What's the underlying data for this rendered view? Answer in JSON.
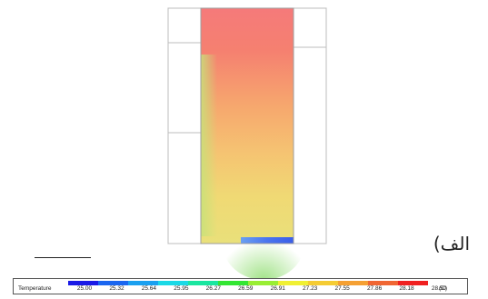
{
  "caption": "الف)",
  "legend": {
    "title": "Temperature",
    "unit": "(C)",
    "ticks": [
      "25.00",
      "25.32",
      "25.64",
      "25.95",
      "26.27",
      "26.59",
      "26.91",
      "27.23",
      "27.55",
      "27.86",
      "28.18",
      "28.50"
    ],
    "colors": [
      "#1a1ae6",
      "#1a66f0",
      "#1aa0f0",
      "#1ad9e6",
      "#1ae6a0",
      "#33e633",
      "#99ee33",
      "#f0f033",
      "#f5cc33",
      "#f5a033",
      "#f06633",
      "#f02020"
    ]
  },
  "contour": {
    "hot_color": "#f57a7a",
    "mid_color": "#f7bf6f",
    "warm_color": "#f1dc76",
    "cool_color": "#b5e27b",
    "cold_color": "#5c7ef0"
  }
}
